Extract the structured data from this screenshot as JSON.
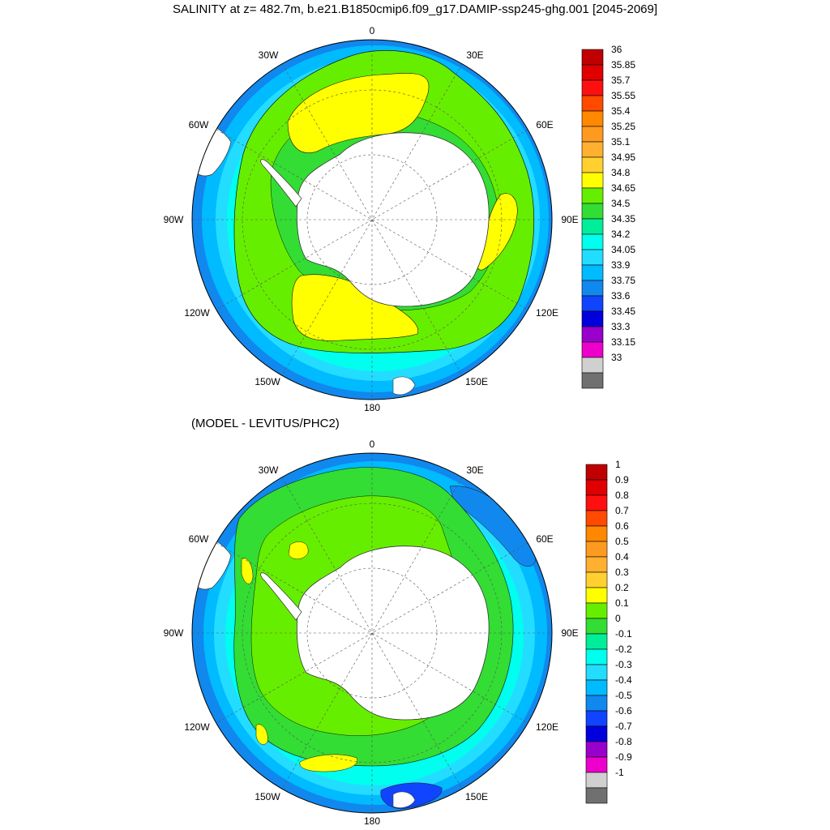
{
  "title": "SALINITY at z= 482.7m, b.e21.B1850cmip6.f09_g17.DAMIP-ssp245-ghg.001 [2045-2069]",
  "subtitle": "(MODEL - LEVITUS/PHC2)",
  "longitude_labels": [
    "0",
    "30E",
    "60E",
    "90E",
    "120E",
    "150E",
    "180",
    "150W",
    "120W",
    "90W",
    "60W",
    "30W"
  ],
  "colors": {
    "land": "#ffffff",
    "coast": "#333333",
    "contour": "#111111",
    "grid": "#555555"
  },
  "maps": [
    {
      "name": "salinity",
      "colorbar": {
        "labels": [
          "36",
          "35.85",
          "35.7",
          "35.55",
          "35.4",
          "35.25",
          "35.1",
          "34.95",
          "34.8",
          "34.65",
          "34.5",
          "34.35",
          "34.2",
          "34.05",
          "33.9",
          "33.75",
          "33.6",
          "33.45",
          "33.3",
          "33.15",
          "33"
        ],
        "colors": [
          "#c00000",
          "#e00000",
          "#ff1010",
          "#ff4a00",
          "#ff8800",
          "#ff9a20",
          "#ffb030",
          "#ffd030",
          "#ffff00",
          "#66ee00",
          "#33dd33",
          "#00ee99",
          "#00ffee",
          "#22ddff",
          "#00bbff",
          "#1188ee",
          "#1144ff",
          "#0000dd",
          "#9900cc",
          "#ee00cc",
          "#d0d0d0",
          "#707070"
        ]
      }
    },
    {
      "name": "difference",
      "colorbar": {
        "labels": [
          "1",
          "0.9",
          "0.8",
          "0.7",
          "0.6",
          "0.5",
          "0.4",
          "0.3",
          "0.2",
          "0.1",
          "0",
          "-0.1",
          "-0.2",
          "-0.3",
          "-0.4",
          "-0.5",
          "-0.6",
          "-0.7",
          "-0.8",
          "-0.9",
          "-1"
        ],
        "colors": [
          "#c00000",
          "#e00000",
          "#ff1010",
          "#ff4a00",
          "#ff8800",
          "#ff9a20",
          "#ffb030",
          "#ffd030",
          "#ffff00",
          "#66ee00",
          "#33dd33",
          "#00ee99",
          "#00ffee",
          "#22ddff",
          "#00bbff",
          "#1188ee",
          "#1144ff",
          "#0000dd",
          "#9900cc",
          "#ee00cc",
          "#d0d0d0",
          "#707070"
        ]
      }
    }
  ]
}
